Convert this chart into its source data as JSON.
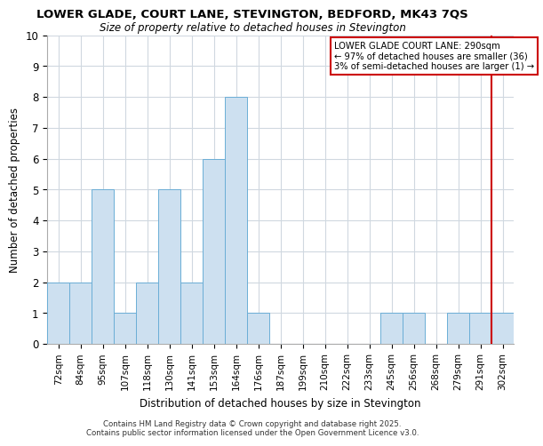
{
  "title_line1": "LOWER GLADE, COURT LANE, STEVINGTON, BEDFORD, MK43 7QS",
  "title_line2": "Size of property relative to detached houses in Stevington",
  "xlabel": "Distribution of detached houses by size in Stevington",
  "ylabel": "Number of detached properties",
  "categories": [
    "72sqm",
    "84sqm",
    "95sqm",
    "107sqm",
    "118sqm",
    "130sqm",
    "141sqm",
    "153sqm",
    "164sqm",
    "176sqm",
    "187sqm",
    "199sqm",
    "210sqm",
    "222sqm",
    "233sqm",
    "245sqm",
    "256sqm",
    "268sqm",
    "279sqm",
    "291sqm",
    "302sqm"
  ],
  "values": [
    2,
    2,
    5,
    1,
    2,
    5,
    2,
    6,
    8,
    1,
    0,
    0,
    0,
    0,
    0,
    1,
    1,
    0,
    1,
    1,
    1
  ],
  "bar_color": "#cde0f0",
  "bar_edge_color": "#6baed6",
  "grid_color": "#d0d8e0",
  "vline_x_index": 19,
  "vline_color": "#cc0000",
  "annotation_title": "LOWER GLADE COURT LANE: 290sqm",
  "annotation_line1": "← 97% of detached houses are smaller (36)",
  "annotation_line2": "3% of semi-detached houses are larger (1) →",
  "annotation_box_color": "#cc0000",
  "ylim": [
    0,
    10
  ],
  "yticks": [
    0,
    1,
    2,
    3,
    4,
    5,
    6,
    7,
    8,
    9,
    10
  ],
  "footer_line1": "Contains HM Land Registry data © Crown copyright and database right 2025.",
  "footer_line2": "Contains public sector information licensed under the Open Government Licence v3.0.",
  "background_color": "#ffffff"
}
